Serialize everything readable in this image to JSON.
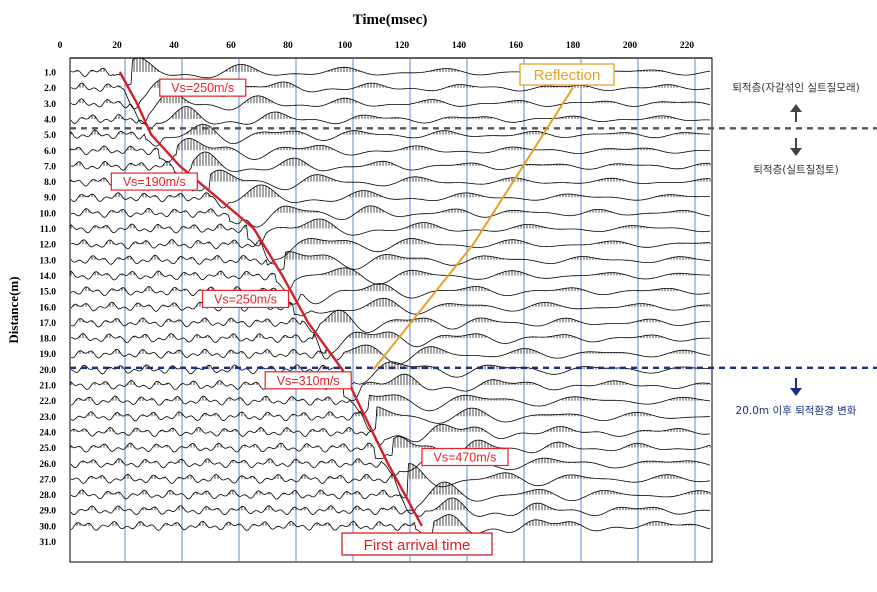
{
  "chart_data": {
    "type": "line",
    "title": "Time(msec)",
    "xlabel": "Time(msec)",
    "ylabel": "Distance(m)",
    "xlim": [
      0,
      230
    ],
    "ylim": [
      1.0,
      31.0
    ],
    "x_ticks": [
      "0",
      "20",
      "40",
      "60",
      "80",
      "100",
      "120",
      "140",
      "160",
      "180",
      "200",
      "220"
    ],
    "y_ticks": [
      "1.0",
      "2.0",
      "3.0",
      "4.0",
      "5.0",
      "6.0",
      "7.0",
      "8.0",
      "9.0",
      "10.0",
      "11.0",
      "12.0",
      "13.0",
      "14.0",
      "15.0",
      "16.0",
      "17.0",
      "18.0",
      "19.0",
      "20.0",
      "21.0",
      "22.0",
      "23.0",
      "24.0",
      "25.0",
      "26.0",
      "27.0",
      "28.0",
      "29.0",
      "30.0",
      "31.0"
    ],
    "first_arrival": {
      "label": "First arrival time",
      "color": "#d42026",
      "points": [
        [
          21,
          1.0
        ],
        [
          27,
          3.0
        ],
        [
          32,
          5.0
        ],
        [
          42,
          7.0
        ],
        [
          55,
          9.0
        ],
        [
          68,
          11.0
        ],
        [
          78,
          14.0
        ],
        [
          87,
          17.0
        ],
        [
          99,
          20.0
        ],
        [
          107,
          23.0
        ],
        [
          115,
          26.0
        ],
        [
          127,
          30.0
        ]
      ]
    },
    "reflection": {
      "label": "Reflection",
      "color": "#e8a028",
      "points": [
        [
          110,
          20.0
        ],
        [
          145,
          12.0
        ],
        [
          180,
          2.0
        ]
      ]
    },
    "velocity_labels": [
      {
        "label": "Vs=250m/s",
        "time": 35,
        "distance": 2.0
      },
      {
        "label": "Vs=190m/s",
        "time": 18,
        "distance": 8.0
      },
      {
        "label": "Vs=250m/s",
        "time": 50,
        "distance": 15.5
      },
      {
        "label": "Vs=310m/s",
        "time": 72,
        "distance": 20.7
      },
      {
        "label": "Vs=470m/s",
        "time": 127,
        "distance": 25.6
      }
    ],
    "boundaries": [
      {
        "distance": 4.6,
        "color": "#555555"
      },
      {
        "distance": 19.9,
        "color": "#1a2f80"
      }
    ],
    "annotations": {
      "upper_layer": "퇴적층(자갈섞인 실트질모래)",
      "lower_layer": "퇴적층(실트질점토)",
      "change_note": "20.0m 이후 퇴적환경 변화"
    },
    "trace_color": "#000000",
    "gridline_color": "#3a6cc8"
  }
}
